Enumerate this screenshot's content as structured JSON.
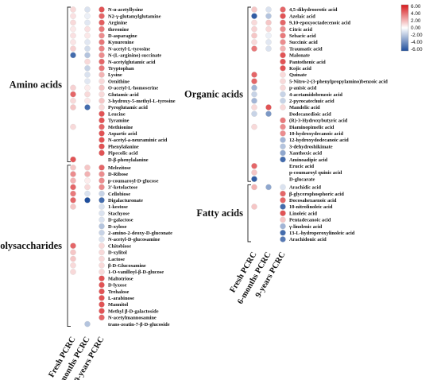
{
  "chart_data": {
    "type": "heatmap",
    "title": "",
    "columns": [
      "Fresh PCRC",
      "6-months PCRC",
      "9-years PCRC"
    ],
    "colorbar": {
      "min": -6,
      "max": 6,
      "ticks": [
        "6.00",
        "4.00",
        "2.00",
        "0.00",
        "-2.00",
        "-4.00",
        "-6.00"
      ],
      "high_color": "#d7191c",
      "mid_color": "#ffffff",
      "low_color": "#1f4e9c"
    },
    "panels": [
      {
        "groups": [
          {
            "name": "Amino acids",
            "rows": [
              {
                "label": "N-α-acetyllysine",
                "values": [
                  1.0,
                  -1.0,
                  4.5
                ]
              },
              {
                "label": "N2-γ-glutamylglutamine",
                "values": [
                  0.8,
                  -0.5,
                  4.0
                ]
              },
              {
                "label": "Arginine",
                "values": [
                  1.0,
                  -0.8,
                  4.2
                ]
              },
              {
                "label": "threonine",
                "values": [
                  0.6,
                  0.8,
                  3.5
                ]
              },
              {
                "label": "D-asparagine",
                "values": [
                  0.8,
                  0.6,
                  3.0
                ]
              },
              {
                "label": "Kynurenine",
                "values": [
                  0.7,
                  -0.8,
                  3.6
                ]
              },
              {
                "label": "N-acetyl-L-tyrosine",
                "values": [
                  1.2,
                  -1.2,
                  3.2
                ]
              },
              {
                "label": "N-(L-arginino) succinate",
                "values": [
                  -5.0,
                  -2.0,
                  3.0
                ]
              },
              {
                "label": "N-acetylglutamic acid",
                "values": [
                  null,
                  1.0,
                  4.0
                ]
              },
              {
                "label": "Tryptophan",
                "values": [
                  null,
                  -1.5,
                  3.5
                ]
              },
              {
                "label": "Lysine",
                "values": [
                  null,
                  -1.0,
                  2.0
                ]
              },
              {
                "label": "Ornithine",
                "values": [
                  null,
                  -0.8,
                  1.0
                ]
              },
              {
                "label": "O-acetyl-L-homoserine",
                "values": [
                  1.2,
                  0.5,
                  1.5
                ]
              },
              {
                "label": "Glutamic acid",
                "values": [
                  4.0,
                  1.0,
                  1.0
                ]
              },
              {
                "label": "3-hydroxy-5-methyl-L-tyrosine",
                "values": [
                  1.0,
                  0.6,
                  1.5
                ]
              },
              {
                "label": "Pyroglutamic acid",
                "values": [
                  1.5,
                  -5.0,
                  1.0
                ]
              },
              {
                "label": "Leucine",
                "values": [
                  null,
                  null,
                  4.5
                ]
              },
              {
                "label": "Tyramine",
                "values": [
                  null,
                  null,
                  4.5
                ]
              },
              {
                "label": "Methionine",
                "values": [
                  1.0,
                  null,
                  4.0
                ]
              },
              {
                "label": "Aspartic acid",
                "values": [
                  null,
                  null,
                  4.5
                ]
              },
              {
                "label": "N-acetyl-a-neuraminic acid",
                "values": [
                  null,
                  null,
                  4.5
                ]
              },
              {
                "label": "Phenylalanine",
                "values": [
                  null,
                  null,
                  4.5
                ]
              },
              {
                "label": "Pipecolic acid",
                "values": [
                  null,
                  null,
                  4.5
                ]
              },
              {
                "label": "D-β-phenylalanine",
                "values": [
                  4.5,
                  null,
                  null
                ]
              }
            ]
          },
          {
            "name": "Polysaccharides",
            "rows": [
              {
                "label": "Melezitose",
                "values": [
                  1.5,
                  1.5,
                  4.0
                ]
              },
              {
                "label": "D-Ribose",
                "values": [
                  3.0,
                  2.0,
                  3.0
                ]
              },
              {
                "label": "p-coumaroyl-D-glucose",
                "values": [
                  2.0,
                  0.5,
                  3.0
                ]
              },
              {
                "label": "3'-ketolactose",
                "values": [
                  4.0,
                  1.0,
                  3.0
                ]
              },
              {
                "label": "Cellobiose",
                "values": [
                  3.5,
                  -1.0,
                  -1.5
                ]
              },
              {
                "label": "Digalacturonate",
                "values": [
                  4.0,
                  -6.0,
                  -5.0
                ]
              },
              {
                "label": "1-kestose",
                "values": [
                  1.5,
                  null,
                  -1.0
                ]
              },
              {
                "label": "Stachyose",
                "values": [
                  null,
                  null,
                  -1.0
                ]
              },
              {
                "label": "D-galactose",
                "values": [
                  null,
                  null,
                  -1.0
                ]
              },
              {
                "label": "D-xylose",
                "values": [
                  null,
                  null,
                  -2.0
                ]
              },
              {
                "label": "2-amino-2-deoxy-D-gluconate",
                "values": [
                  null,
                  null,
                  -1.5
                ]
              },
              {
                "label": "N-acetyl-D-glucosamine",
                "values": [
                  null,
                  null,
                  -1.0
                ]
              },
              {
                "label": "Chitobiose",
                "values": [
                  4.0,
                  null,
                  1.0
                ]
              },
              {
                "label": "D-xylitol",
                "values": [
                  1.5,
                  null,
                  1.0
                ]
              },
              {
                "label": "Lactose",
                "values": [
                  1.5,
                  null,
                  1.0
                ]
              },
              {
                "label": "β-D-Glucosamine",
                "values": [
                  1.0,
                  null,
                  1.0
                ]
              },
              {
                "label": "1-O-vanilloyl-β-D-glucose",
                "values": [
                  1.0,
                  null,
                  1.0
                ]
              },
              {
                "label": "Maltotriose",
                "values": [
                  null,
                  null,
                  4.5
                ]
              },
              {
                "label": "D-lyxose",
                "values": [
                  null,
                  null,
                  4.5
                ]
              },
              {
                "label": "Trehalose",
                "values": [
                  null,
                  null,
                  4.5
                ]
              },
              {
                "label": "L-arabinose",
                "values": [
                  null,
                  null,
                  4.5
                ]
              },
              {
                "label": "Mannitol",
                "values": [
                  null,
                  null,
                  4.5
                ]
              },
              {
                "label": "Methyl β-D-galactoside",
                "values": [
                  null,
                  null,
                  4.5
                ]
              },
              {
                "label": "N-acetylmannosamine",
                "values": [
                  null,
                  null,
                  4.0
                ]
              },
              {
                "label": "trans-zeatin-7-β-D-glucoside",
                "values": [
                  null,
                  -2.0,
                  null
                ]
              }
            ]
          }
        ]
      },
      {
        "groups": [
          {
            "name": "Organic acids",
            "rows": [
              {
                "label": "4,5-dihydroorotic acid",
                "values": [
                  1.5,
                  -1.0,
                  4.0
                ]
              },
              {
                "label": "Azelaic acid",
                "values": [
                  -5.5,
                  -2.0,
                  4.5
                ]
              },
              {
                "label": "9,10-epoxyoctadecenoic acid",
                "values": [
                  1.0,
                  1.5,
                  4.0
                ]
              },
              {
                "label": "Citric acid",
                "values": [
                  1.2,
                  1.0,
                  3.0
                ]
              },
              {
                "label": "Sebacic acid",
                "values": [
                  1.5,
                  -0.5,
                  3.5
                ]
              },
              {
                "label": "Succinic acid",
                "values": [
                  1.0,
                  -0.8,
                  3.0
                ]
              },
              {
                "label": "Traumatic acid",
                "values": [
                  3.5,
                  -1.0,
                  2.0
                ]
              },
              {
                "label": "Malonate",
                "values": [
                  null,
                  null,
                  4.5
                ]
              },
              {
                "label": "Pantothenic acid",
                "values": [
                  null,
                  null,
                  4.5
                ]
              },
              {
                "label": "Kojic acid",
                "values": [
                  null,
                  null,
                  4.5
                ]
              },
              {
                "label": "Quinate",
                "values": [
                  4.0,
                  null,
                  1.0
                ]
              },
              {
                "label": "5-Nitro-2-(3-phenylpropylamino)benzoic acid",
                "values": [
                  4.0,
                  null,
                  1.0
                ]
              },
              {
                "label": "p-anisic acid",
                "values": [
                  -2.5,
                  null,
                  1.0
                ]
              },
              {
                "label": "4-acetamidobenzoic acid",
                "values": [
                  -1.5,
                  null,
                  -1.5
                ]
              },
              {
                "label": "2-pyrocatechuic acid",
                "values": [
                  -2.5,
                  null,
                  -1.5
                ]
              },
              {
                "label": "Mandelic acid",
                "values": [
                  1.0,
                  4.5,
                  1.0
                ]
              },
              {
                "label": "Dodecanedioic acid",
                "values": [
                  -1.5,
                  -3.5,
                  null
                ]
              },
              {
                "label": "(R)-3-Hydroxybutyric acid",
                "values": [
                  null,
                  null,
                  3.5
                ]
              },
              {
                "label": "Diaminopimelic acid",
                "values": [
                  1.0,
                  null,
                  3.0
                ]
              },
              {
                "label": "10-hydroxydecanoic acid",
                "values": [
                  null,
                  null,
                  3.0
                ]
              },
              {
                "label": "12-hydroxydodecanoic acid",
                "values": [
                  null,
                  null,
                  -2.5
                ]
              },
              {
                "label": "3-dehydroshikimate",
                "values": [
                  null,
                  null,
                  -2.0
                ]
              },
              {
                "label": "Xanthoxic acid",
                "values": [
                  null,
                  null,
                  -3.0
                ]
              },
              {
                "label": "Aminoadipic acid",
                "values": [
                  null,
                  null,
                  -5.0
                ]
              },
              {
                "label": "Erucic acid",
                "values": [
                  4.0,
                  null,
                  null
                ]
              },
              {
                "label": "p-coumaroyl quinic acid",
                "values": [
                  1.5,
                  null,
                  null
                ]
              },
              {
                "label": "D-glucarate",
                "values": [
                  -5.5,
                  null,
                  null
                ]
              }
            ]
          },
          {
            "name": "Fatty acids",
            "rows": [
              {
                "label": "Arachidic acid",
                "values": [
                  2.0,
                  -3.0,
                  -1.0
                ]
              },
              {
                "label": "β-glycerophosphoric acid",
                "values": [
                  null,
                  null,
                  4.0
                ]
              },
              {
                "label": "Docosahexaenoic acid",
                "values": [
                  null,
                  null,
                  4.0
                ]
              },
              {
                "label": "10-nitrolinoleic acid",
                "values": [
                  1.5,
                  null,
                  -5.0
                ]
              },
              {
                "label": "Linoleic acid",
                "values": [
                  null,
                  null,
                  4.5
                ]
              },
              {
                "label": "Pentadecanoic acid",
                "values": [
                  null,
                  null,
                  1.5
                ]
              },
              {
                "label": "γ-linolenic acid",
                "values": [
                  null,
                  null,
                  -2.5
                ]
              },
              {
                "label": "13-L-hydroperoxylinoleic acid",
                "values": [
                  null,
                  null,
                  -5.0
                ]
              },
              {
                "label": "Arachidonic acid",
                "values": [
                  null,
                  null,
                  -4.5
                ]
              }
            ]
          }
        ]
      }
    ]
  }
}
